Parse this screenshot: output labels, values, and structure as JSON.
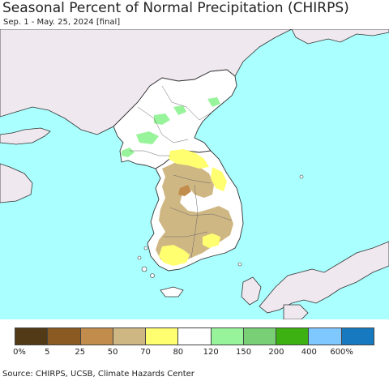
{
  "title": "Seasonal Percent of Normal Precipitation (CHIRPS)",
  "subtitle": "Sep. 1 - May. 25, 2024 [final]",
  "source": "Source: CHIRPS, UCSB, Climate Hazards Center",
  "colors": {
    "sea": "#aaffff",
    "foreign_land": "#efe8ef",
    "korea_land": "#ffffff",
    "border": "#222222"
  },
  "legend": {
    "swatch_colors": [
      "#523a17",
      "#8a5a22",
      "#c18c4c",
      "#cfb784",
      "#ffff6f",
      "#ffffff",
      "#98f49a",
      "#78cf76",
      "#3db111",
      "#7fc7ff",
      "#177ac0"
    ],
    "labels": [
      "0%",
      "5",
      "25",
      "50",
      "70",
      "80",
      "120",
      "150",
      "200",
      "400",
      "600%"
    ]
  }
}
